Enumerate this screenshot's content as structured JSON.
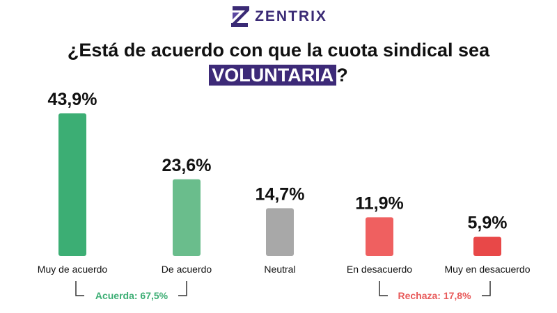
{
  "brand": {
    "name": "ZENTRIX",
    "logo_icon": "zentrix-logo-icon",
    "color": "#3a2a75"
  },
  "title": {
    "line1": "¿Está de acuerdo con que la cuota sindical sea",
    "highlight": "VOLUNTARIA",
    "suffix": "?",
    "highlight_color": "#3d2a78"
  },
  "chart_data": {
    "type": "bar",
    "categories": [
      "Muy de acuerdo",
      "De acuerdo",
      "Neutral",
      "En desacuerdo",
      "Muy en desacuerdo"
    ],
    "values": [
      43.9,
      23.6,
      14.7,
      11.9,
      5.9
    ],
    "value_labels": [
      "43,9%",
      "23,6%",
      "14,7%",
      "11,9%",
      "5,9%"
    ],
    "colors": [
      "#3cae74",
      "#6abd8c",
      "#a8a8a8",
      "#ef6060",
      "#e84848"
    ],
    "ylim": [
      0,
      43.9
    ],
    "grid": false,
    "title": "¿Está de acuerdo con que la cuota sindical sea VOLUNTARIA?",
    "xlabel": "",
    "ylabel": "",
    "annotations": [
      {
        "text": "Acuerda: 67,5%",
        "categories": [
          0,
          1
        ],
        "color": "#3cae74"
      },
      {
        "text": "Rechaza: 17,8%",
        "categories": [
          3,
          4
        ],
        "color": "#e85a5a"
      }
    ]
  }
}
